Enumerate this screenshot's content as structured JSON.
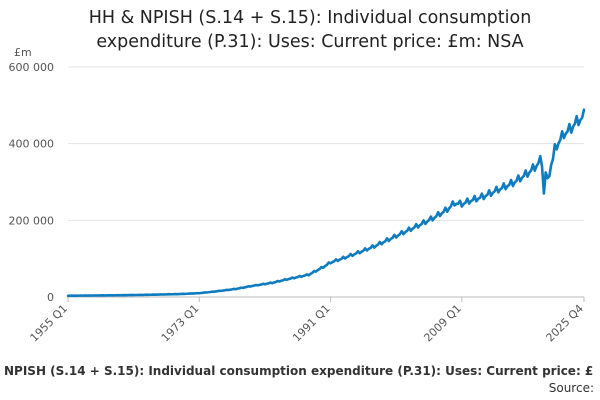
{
  "chart_data": {
    "type": "line",
    "title_line1": "HH & NPISH (S.14 + S.15): Individual consumption",
    "title_line2": "expenditure (P.31): Uses: Current price: £m: NSA",
    "y_unit": "£m",
    "ylim": [
      0,
      600000
    ],
    "y_ticks": [
      {
        "value": 0,
        "label": "0"
      },
      {
        "value": 200000,
        "label": "200 000"
      },
      {
        "value": 400000,
        "label": "400 000"
      },
      {
        "value": 600000,
        "label": "600 000"
      }
    ],
    "xlim": [
      1955.0,
      2025.75
    ],
    "x_ticks": [
      {
        "value": 1955.0,
        "label": "1955 Q1"
      },
      {
        "value": 1973.0,
        "label": "1973 Q1"
      },
      {
        "value": 1991.0,
        "label": "1991 Q1"
      },
      {
        "value": 2009.0,
        "label": "2009 Q1"
      },
      {
        "value": 2025.75,
        "label": "2025 Q4"
      }
    ],
    "grid": true,
    "color": "#0f7cbf",
    "series": [
      {
        "name": "HH & NPISH (S.14 + S.15): Individual consumption expenditure (P.31): Uses: Current price: £m: NSA",
        "points": [
          [
            1955,
            3300
          ],
          [
            1960,
            4200
          ],
          [
            1965,
            5400
          ],
          [
            1970,
            7500
          ],
          [
            1973,
            10000
          ],
          [
            1975,
            14000
          ],
          [
            1978,
            21000
          ],
          [
            1980,
            28000
          ],
          [
            1983,
            37000
          ],
          [
            1985,
            46000
          ],
          [
            1988,
            58000
          ],
          [
            1990,
            78000
          ],
          [
            1991,
            90000
          ],
          [
            1993,
            103000
          ],
          [
            1995,
            117000
          ],
          [
            1997,
            132000
          ],
          [
            1999,
            150000
          ],
          [
            2001,
            168000
          ],
          [
            2003,
            186000
          ],
          [
            2005,
            205000
          ],
          [
            2007,
            228000
          ],
          [
            2008,
            245000
          ],
          [
            2009,
            242000
          ],
          [
            2010,
            250000
          ],
          [
            2012,
            262000
          ],
          [
            2014,
            280000
          ],
          [
            2016,
            297000
          ],
          [
            2018,
            322000
          ],
          [
            2019,
            338000
          ],
          [
            2019.75,
            355000
          ],
          [
            2020.0,
            340000
          ],
          [
            2020.25,
            270000
          ],
          [
            2020.5,
            325000
          ],
          [
            2020.75,
            310000
          ],
          [
            2021.0,
            315000
          ],
          [
            2021.25,
            345000
          ],
          [
            2021.5,
            360000
          ],
          [
            2021.75,
            385000
          ],
          [
            2022,
            395000
          ],
          [
            2022.5,
            410000
          ],
          [
            2023,
            425000
          ],
          [
            2023.5,
            432000
          ],
          [
            2024,
            440000
          ],
          [
            2024.5,
            452000
          ],
          [
            2025,
            460000
          ],
          [
            2025.75,
            472000
          ]
        ]
      }
    ],
    "footer_series_label": "NPISH (S.14 + S.15): Individual consumption expenditure (P.31): Uses: Current price: £",
    "source_label": "Source:"
  }
}
